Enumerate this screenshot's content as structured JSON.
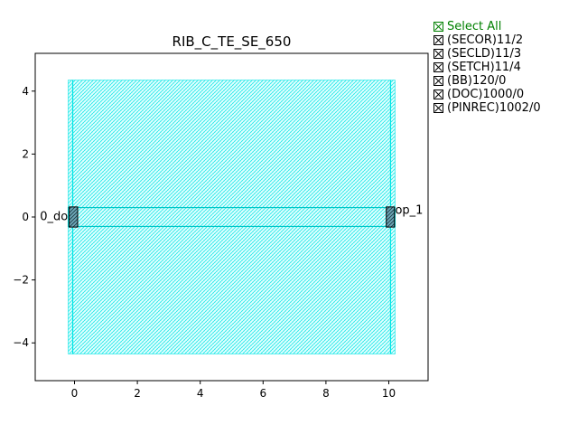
{
  "chart_data": {
    "type": "layout",
    "title": "RIB_C_TE_SE_650",
    "xlabel": "",
    "ylabel": "",
    "xlim": [
      -1.25,
      11.25
    ],
    "ylim": [
      -5.2,
      5.2
    ],
    "xticks": [
      0,
      2,
      4,
      6,
      8,
      10
    ],
    "yticks": [
      4,
      2,
      0,
      -2,
      -4
    ],
    "xtick_labels": [
      "0",
      "2",
      "4",
      "6",
      "8",
      "10"
    ],
    "ytick_labels": [
      "4",
      "2",
      "0",
      "−2",
      "−4"
    ],
    "grid": false,
    "shapes": [
      {
        "name": "cladding-region",
        "x0": -0.2,
        "x1": 10.2,
        "y0": -4.35,
        "y1": 4.35,
        "color": "#00e5e5"
      },
      {
        "name": "core-waveguide",
        "x0": -0.2,
        "x1": 10.2,
        "y0": -0.3,
        "y1": 0.3,
        "color": "#00c8c8"
      },
      {
        "name": "port-left",
        "x0": -0.17,
        "x1": 0.1,
        "y0": -0.32,
        "y1": 0.32,
        "color": "#000000"
      },
      {
        "name": "port-right",
        "x0": 9.92,
        "x1": 10.18,
        "y0": -0.32,
        "y1": 0.32,
        "color": "#000000"
      }
    ],
    "annotations": [
      {
        "text": "0_do",
        "x": -1.1,
        "y": -0.1
      },
      {
        "text": "op_1",
        "x": 10.2,
        "y": 0.1
      }
    ],
    "legend_placement": "outside-right"
  },
  "legend": {
    "select_all": "Select All",
    "items": [
      "(SECOR)11/2",
      "(SECLD)11/3",
      "(SETCH)11/4",
      "(BB)120/0",
      "(DOC)1000/0",
      "(PINREC)1002/0"
    ]
  },
  "colors": {
    "cladding": "#00e5e5",
    "core": "#00c8c8",
    "select_all": "#008000"
  }
}
